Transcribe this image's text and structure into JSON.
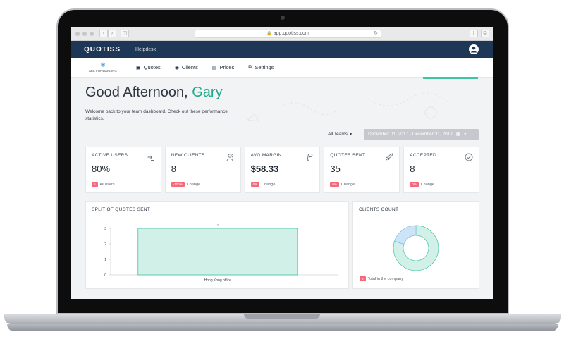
{
  "browser": {
    "url": "app.quotiss.com"
  },
  "appbar": {
    "brand": "QUOTISS",
    "helpdesk": "Helpdesk"
  },
  "nav": {
    "logo_text": "ABC FORWARDING",
    "items": [
      {
        "label": "Quotes",
        "icon": "quotes-icon"
      },
      {
        "label": "Clients",
        "icon": "clients-icon"
      },
      {
        "label": "Prices",
        "icon": "prices-icon"
      },
      {
        "label": "Settings",
        "icon": "settings-icon"
      }
    ]
  },
  "header": {
    "greeting": "Good Afternoon,",
    "name": "Gary",
    "welcome": "Welcome back to your team dashboard. Check out these performance statistics."
  },
  "filters": {
    "team": "All Teams",
    "date_range": "December 01, 2017 - December 31, 2017"
  },
  "stats": [
    {
      "title": "ACTIVE USERS",
      "value": "80%",
      "badge": "5",
      "footer": "All users",
      "icon": "sign-in-icon"
    },
    {
      "title": "NEW CLIENTS",
      "value": "8",
      "badge": "-100%",
      "footer": "Change",
      "icon": "users-icon"
    },
    {
      "title": "AVG MARGIN",
      "value": "$58.33",
      "badge": "0%",
      "footer": "Change",
      "icon": "paypal-icon"
    },
    {
      "title": "QUOTES SENT",
      "value": "35",
      "badge": "0%",
      "footer": "Change",
      "icon": "rocket-icon"
    },
    {
      "title": "ACCEPTED",
      "value": "8",
      "badge": "0%",
      "footer": "Change",
      "icon": "check-circle-icon"
    }
  ],
  "quotes_panel": {
    "title": "SPLIT OF QUOTES SENT"
  },
  "clients_panel": {
    "title": "CLIENTS COUNT",
    "badge": "5",
    "footer": "Total in the company"
  },
  "colors": {
    "navy": "#1e3756",
    "teal": "#1fa98a",
    "bar_fill": "#d1f1e8",
    "bar_stroke": "#3fc4a0",
    "donut_main": "#d1f1e8",
    "donut_other": "#cde4f8",
    "badge": "#f46a7a"
  },
  "chart_data": [
    {
      "type": "bar",
      "categories": [
        "Hong Kong office"
      ],
      "values": [
        3
      ],
      "data_labels": [
        "3"
      ],
      "ylim": [
        0,
        3
      ],
      "yticks": [
        0,
        1,
        2,
        3
      ],
      "grid": true
    },
    {
      "type": "pie",
      "donut": true,
      "slices": [
        {
          "value": 4
        },
        {
          "value": 1
        }
      ]
    }
  ]
}
